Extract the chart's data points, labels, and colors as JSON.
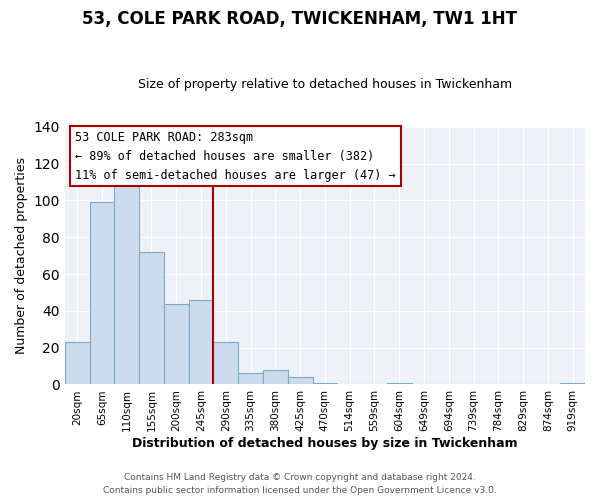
{
  "title": "53, COLE PARK ROAD, TWICKENHAM, TW1 1HT",
  "subtitle": "Size of property relative to detached houses in Twickenham",
  "xlabel": "Distribution of detached houses by size in Twickenham",
  "ylabel": "Number of detached properties",
  "bin_labels": [
    "20sqm",
    "65sqm",
    "110sqm",
    "155sqm",
    "200sqm",
    "245sqm",
    "290sqm",
    "335sqm",
    "380sqm",
    "425sqm",
    "470sqm",
    "514sqm",
    "559sqm",
    "604sqm",
    "649sqm",
    "694sqm",
    "739sqm",
    "784sqm",
    "829sqm",
    "874sqm",
    "919sqm"
  ],
  "bar_heights": [
    23,
    99,
    108,
    72,
    44,
    46,
    23,
    6,
    8,
    4,
    1,
    0,
    0,
    1,
    0,
    0,
    0,
    0,
    0,
    0,
    1
  ],
  "bar_color": "#ccdcec",
  "bar_edge_color": "#7aaac8",
  "vline_color": "#aa0000",
  "annotation_text": "53 COLE PARK ROAD: 283sqm\n← 89% of detached houses are smaller (382)\n11% of semi-detached houses are larger (47) →",
  "annotation_box_color": "#ffffff",
  "annotation_box_edge": "#aa0000",
  "ylim": [
    0,
    140
  ],
  "yticks": [
    0,
    20,
    40,
    60,
    80,
    100,
    120,
    140
  ],
  "footer1": "Contains HM Land Registry data © Crown copyright and database right 2024.",
  "footer2": "Contains public sector information licensed under the Open Government Licence v3.0.",
  "background_color": "#ffffff",
  "plot_background": "#eef2f8",
  "grid_color": "#ffffff",
  "title_fontsize": 12,
  "subtitle_fontsize": 9,
  "ylabel_fontsize": 9,
  "xlabel_fontsize": 9,
  "tick_fontsize": 7.5,
  "annotation_fontsize": 8.5,
  "footer_fontsize": 6.5
}
